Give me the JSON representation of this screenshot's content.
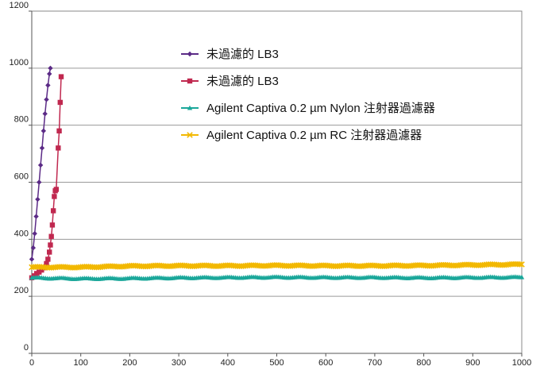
{
  "chart_data": {
    "type": "line",
    "title": "",
    "xlabel": "",
    "ylabel": "",
    "xlim": [
      0,
      1000
    ],
    "ylim": [
      0,
      1200
    ],
    "x_ticks": [
      0,
      100,
      200,
      300,
      400,
      500,
      600,
      700,
      800,
      900,
      1000
    ],
    "y_ticks": [
      0,
      200,
      400,
      600,
      800,
      1000,
      1200
    ],
    "grid": "horizontal",
    "legend_position": "upper-center",
    "series": [
      {
        "name": "未過濾的 LB3",
        "color": "#5b2a86",
        "marker": "diamond",
        "x": [
          0,
          3,
          6,
          9,
          12,
          15,
          18,
          21,
          24,
          27,
          30,
          33,
          36,
          38
        ],
        "y": [
          330,
          370,
          420,
          480,
          540,
          600,
          660,
          720,
          780,
          840,
          890,
          940,
          980,
          1000
        ]
      },
      {
        "name": "未過濾的 LB3",
        "color": "#c0284f",
        "marker": "square",
        "x": [
          0,
          5,
          10,
          15,
          20,
          25,
          30,
          33,
          36,
          38,
          40,
          42,
          44,
          46,
          48,
          50,
          54,
          56,
          58,
          60
        ],
        "y": [
          265,
          272,
          280,
          285,
          292,
          300,
          315,
          330,
          355,
          380,
          410,
          450,
          500,
          550,
          570,
          575,
          720,
          780,
          880,
          970
        ]
      },
      {
        "name": "Agilent Captiva 0.2 µm Nylon 注射器過濾器",
        "color": "#1aa79a",
        "marker": "triangle",
        "x": [
          0,
          100,
          200,
          300,
          400,
          500,
          600,
          700,
          800,
          900,
          1000
        ],
        "y": [
          265,
          262,
          263,
          265,
          266,
          267,
          266,
          266,
          265,
          266,
          267
        ]
      },
      {
        "name": "Agilent Captiva 0.2 µm RC 注射器過濾器",
        "color": "#f2b800",
        "marker": "x",
        "x": [
          0,
          100,
          200,
          300,
          400,
          500,
          600,
          700,
          800,
          900,
          1000
        ],
        "y": [
          302,
          302,
          306,
          307,
          307,
          308,
          307,
          307,
          308,
          310,
          312
        ]
      }
    ]
  }
}
